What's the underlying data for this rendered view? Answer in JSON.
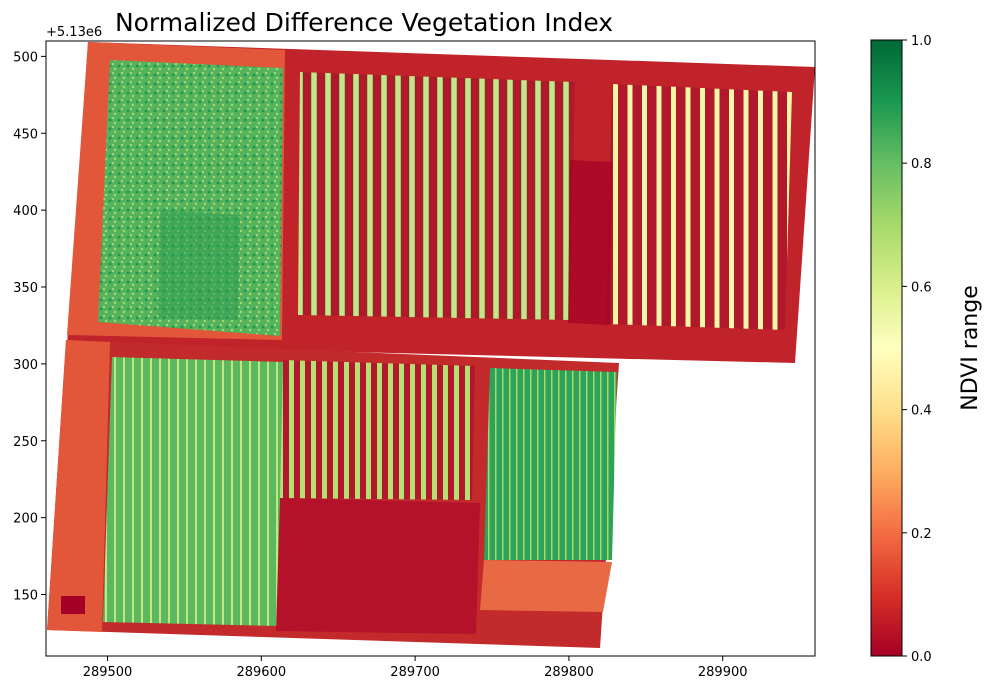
{
  "chart_data": {
    "type": "heatmap",
    "title": "Normalized Difference Vegetation Index",
    "x_ticks": [
      "289500",
      "289600",
      "289700",
      "289800",
      "289900"
    ],
    "x_tick_values": [
      289500,
      289600,
      289700,
      289800,
      289900
    ],
    "y_ticks": [
      "500",
      "450",
      "400",
      "350",
      "300",
      "250",
      "200",
      "150"
    ],
    "y_tick_values": [
      500,
      450,
      400,
      350,
      300,
      250,
      200,
      150
    ],
    "y_offset_label": "+5.13e6",
    "xlim": [
      289460,
      289960
    ],
    "ylim": [
      110,
      510
    ],
    "colorbar": {
      "label": "NDVI range",
      "cmap": "RdYlGn",
      "range": [
        0.0,
        1.0
      ],
      "ticks": [
        "0.0",
        "0.2",
        "0.4",
        "0.6",
        "0.8",
        "1.0"
      ],
      "tick_values": [
        0.0,
        0.2,
        0.4,
        0.6,
        0.8,
        1.0
      ]
    },
    "grid": false,
    "colors": {
      "bare_soil": "#a50026",
      "field_edge": "#d73027",
      "sparse": "#fdae61",
      "medium": "#a6d96a",
      "dense": "#1a9850"
    }
  }
}
